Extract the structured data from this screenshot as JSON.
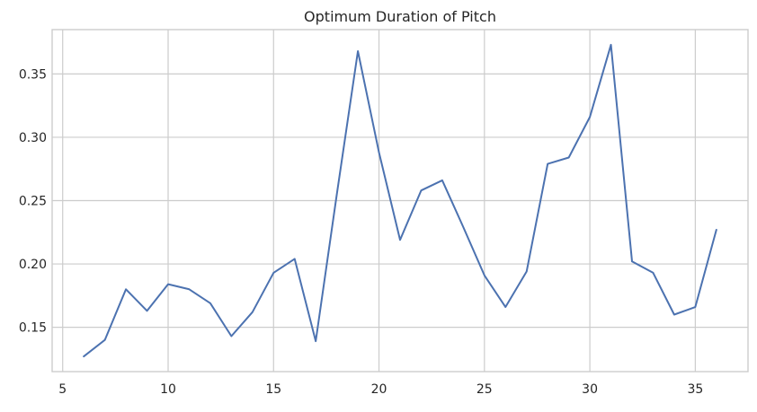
{
  "chart_data": {
    "type": "line",
    "title": "Optimum Duration of Pitch",
    "xlabel": "",
    "ylabel": "",
    "x": [
      6,
      7,
      8,
      9,
      10,
      11,
      12,
      13,
      14,
      15,
      16,
      17,
      18,
      19,
      20,
      21,
      22,
      23,
      24,
      25,
      26,
      27,
      28,
      29,
      30,
      31,
      32,
      33,
      34,
      35,
      36
    ],
    "series": [
      {
        "values": [
          0.127,
          0.14,
          0.18,
          0.163,
          0.184,
          0.18,
          0.169,
          0.143,
          0.162,
          0.193,
          0.204,
          0.139,
          0.255,
          0.368,
          0.288,
          0.219,
          0.258,
          0.266,
          0.229,
          0.191,
          0.166,
          0.194,
          0.279,
          0.284,
          0.316,
          0.373,
          0.202,
          0.193,
          0.16,
          0.166,
          0.227
        ]
      }
    ],
    "x_ticks": [
      "5",
      "10",
      "15",
      "20",
      "25",
      "30",
      "35"
    ],
    "y_ticks": [
      "0.15",
      "0.20",
      "0.25",
      "0.30",
      "0.35"
    ],
    "xlim": [
      4.5,
      37.5
    ],
    "ylim": [
      0.115,
      0.385
    ],
    "grid": true,
    "line_color": "#4c72b0",
    "grid_color": "#cccccc",
    "frame_color": "#cccccc"
  }
}
